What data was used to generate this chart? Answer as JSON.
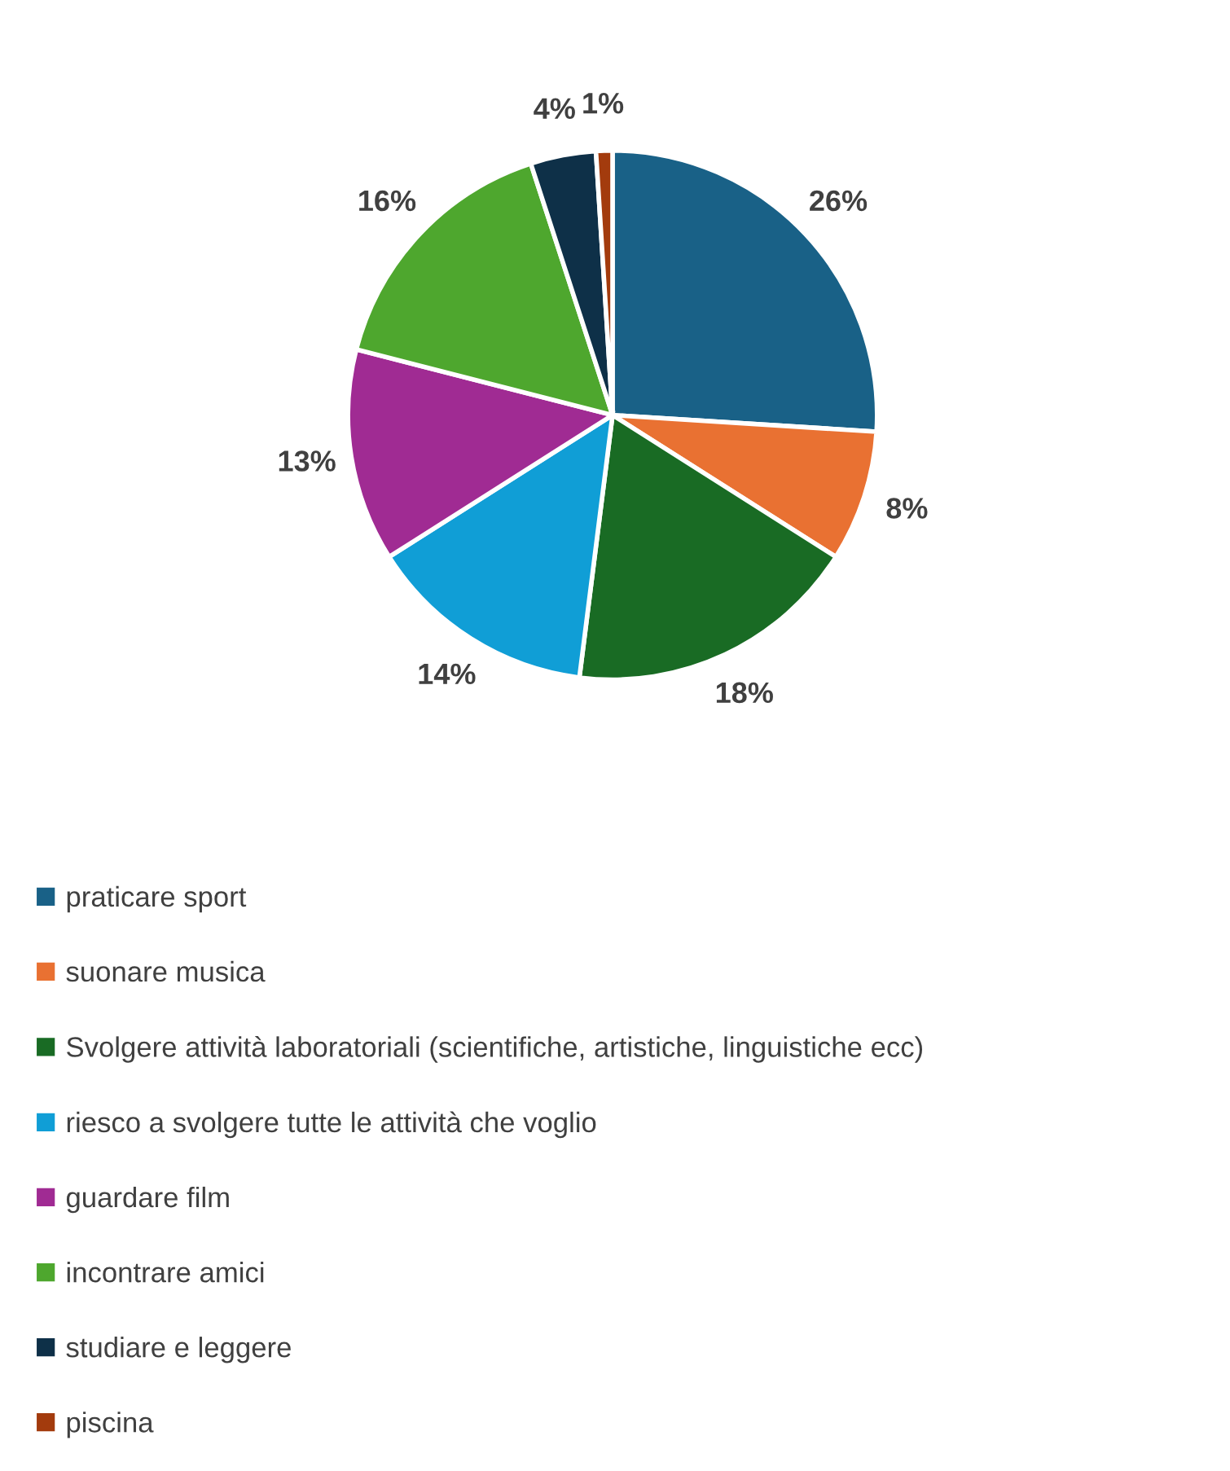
{
  "chart_data": {
    "type": "pie",
    "categories": [
      "praticare sport",
      "suonare musica",
      "Svolgere attività laboratoriali (scientifiche, artistiche, linguistiche ecc)",
      "riesco a svolgere tutte le attività che voglio",
      "guardare film",
      "incontrare amici",
      "studiare e leggere",
      "piscina"
    ],
    "values": [
      26,
      8,
      18,
      14,
      13,
      16,
      4,
      1
    ],
    "value_labels": [
      "26%",
      "8%",
      "18%",
      "14%",
      "13%",
      "16%",
      "4%",
      "1%"
    ],
    "colors": [
      "#196187",
      "#e97132",
      "#196b24",
      "#109ed6",
      "#a02b93",
      "#4ea72e",
      "#0e3048",
      "#a33b0d"
    ],
    "legend": "bottom"
  }
}
